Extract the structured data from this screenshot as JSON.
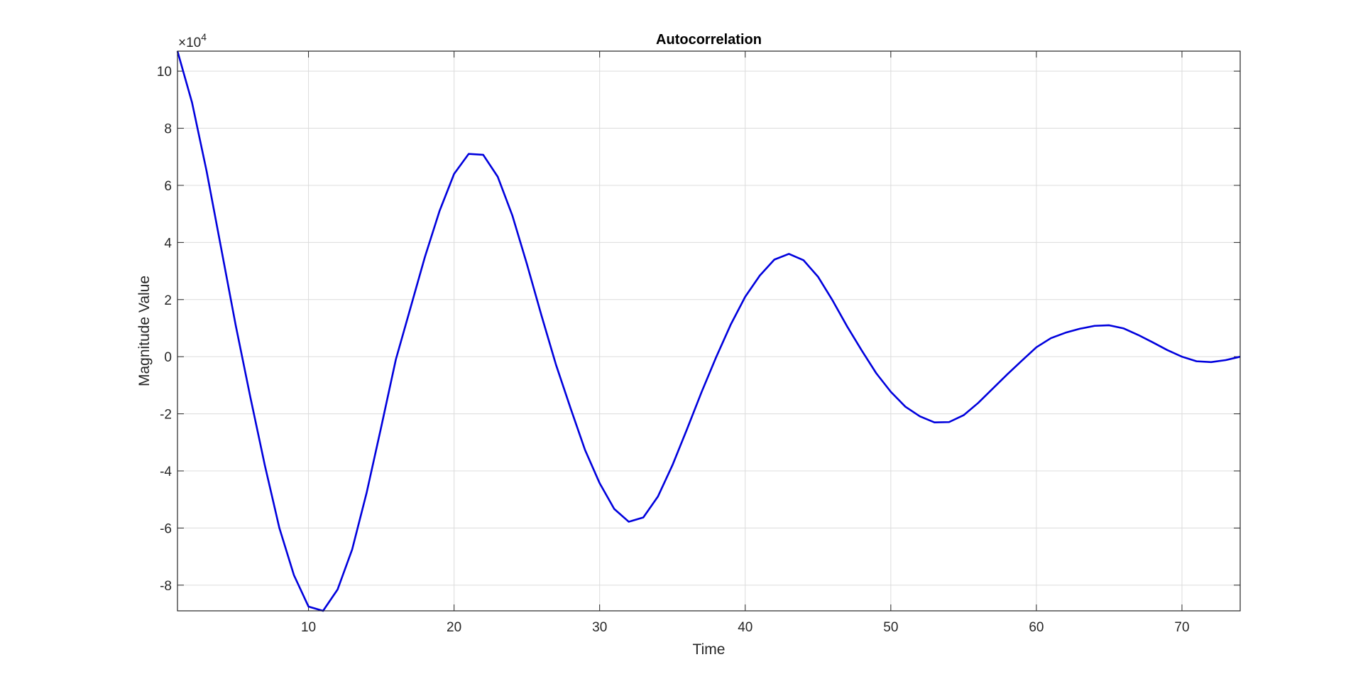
{
  "chart_data": {
    "type": "line",
    "title": "Autocorrelation",
    "xlabel": "Time",
    "ylabel": "Magnitude Value",
    "xlim": [
      1,
      74
    ],
    "ylim": [
      -89000,
      107000
    ],
    "y_scale_exponent_label": {
      "prefix": "×10",
      "exponent": "4"
    },
    "xticks": [
      10,
      20,
      30,
      40,
      50,
      60,
      70
    ],
    "xtick_labels": [
      "10",
      "20",
      "30",
      "40",
      "50",
      "60",
      "70"
    ],
    "yticks": [
      -80000,
      -60000,
      -40000,
      -20000,
      0,
      20000,
      40000,
      60000,
      80000,
      100000
    ],
    "ytick_labels": [
      "-8",
      "-6",
      "-4",
      "-2",
      "0",
      "2",
      "4",
      "6",
      "8",
      "10"
    ],
    "grid": true,
    "series": [
      {
        "color": "#0000dd",
        "x": [
          1,
          2,
          3,
          4,
          5,
          6,
          7,
          8,
          9,
          10,
          11,
          12,
          13,
          14,
          15,
          16,
          17,
          18,
          19,
          20,
          21,
          22,
          23,
          24,
          25,
          26,
          27,
          28,
          29,
          30,
          31,
          32,
          33,
          34,
          35,
          36,
          37,
          38,
          39,
          40,
          41,
          42,
          43,
          44,
          45,
          46,
          47,
          48,
          49,
          50,
          51,
          52,
          53,
          54,
          55,
          56,
          57,
          58,
          59,
          60,
          61,
          62,
          63,
          64,
          65,
          66,
          67,
          68,
          69,
          70,
          71,
          72,
          73,
          74
        ],
        "y": [
          107000,
          89000,
          65000,
          38000,
          11000,
          -14000,
          -38000,
          -60000,
          -76500,
          -87500,
          -89000,
          -81500,
          -67500,
          -47500,
          -24500,
          -1000,
          17000,
          35000,
          51000,
          64000,
          71000,
          70700,
          63000,
          49500,
          32500,
          14500,
          -2800,
          -18000,
          -32700,
          -44300,
          -53300,
          -57800,
          -56300,
          -49000,
          -38000,
          -25400,
          -12400,
          -200,
          11200,
          21000,
          28400,
          34000,
          36000,
          33800,
          28000,
          19700,
          10600,
          2200,
          -5800,
          -12300,
          -17500,
          -20900,
          -23000,
          -22900,
          -20500,
          -16200,
          -11200,
          -6200,
          -1400,
          3300,
          6500,
          8400,
          9800,
          10800,
          11000,
          9900,
          7600,
          5000,
          2300,
          0,
          -1600,
          -1900,
          -1200,
          0
        ]
      }
    ]
  }
}
